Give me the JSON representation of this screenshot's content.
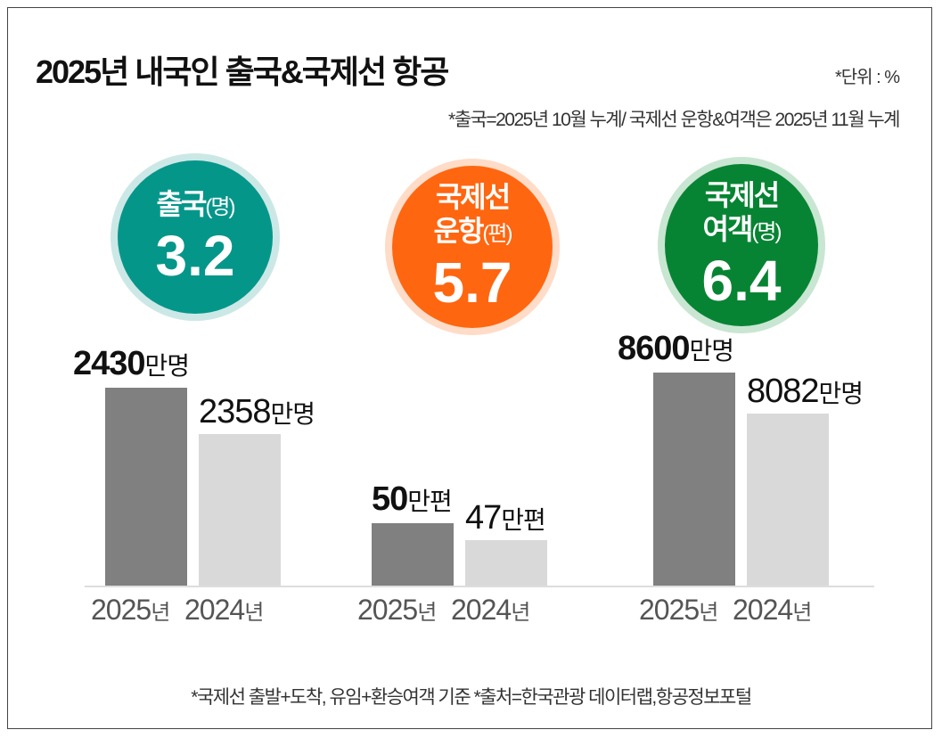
{
  "chart_data": {
    "type": "bar",
    "title": "2025년 내국인 출국&국제선 항공",
    "unit_note": "*단위 : %",
    "period_note": "*출국=2025년 10월 누계/ 국제선 운항&여객은 2025년 11월 누계",
    "footer": "*국제선 출발+도착, 유임+환승여객 기준    *출처=한국관광 데이터랩,항공정보포털",
    "colors": {
      "bar_2025": "#808080",
      "bar_2024": "#d9d9d9",
      "teal": "#05968a",
      "orange": "#ff6610",
      "green": "#078433"
    },
    "groups": [
      {
        "label": "출국",
        "unit_paren": "(명)",
        "change_pct": "3.2",
        "color": "#05968a",
        "ring": "#cce8e6",
        "bars": [
          {
            "year": "2025",
            "year_suffix": "년",
            "value": 2430,
            "value_text": "2430",
            "unit": "만명"
          },
          {
            "year": "2024",
            "year_suffix": "년",
            "value": 2358,
            "value_text": "2358",
            "unit": "만명"
          }
        ]
      },
      {
        "label": "국제선",
        "label2": "운항",
        "unit_paren": "(편)",
        "change_pct": "5.7",
        "color": "#ff6610",
        "ring": "#ffdcc8",
        "bars": [
          {
            "year": "2025",
            "year_suffix": "년",
            "value": 50,
            "value_text": "50",
            "unit": "만편"
          },
          {
            "year": "2024",
            "year_suffix": "년",
            "value": 47,
            "value_text": "47",
            "unit": "만편"
          }
        ]
      },
      {
        "label": "국제선",
        "label2": "여객",
        "unit_paren": "(명)",
        "change_pct": "6.4",
        "color": "#078433",
        "ring": "#c9e6d2",
        "bars": [
          {
            "year": "2025",
            "year_suffix": "년",
            "value": 8600,
            "value_text": "8600",
            "unit": "만명"
          },
          {
            "year": "2024",
            "year_suffix": "년",
            "value": 8082,
            "value_text": "8082",
            "unit": "만명"
          }
        ]
      }
    ]
  }
}
